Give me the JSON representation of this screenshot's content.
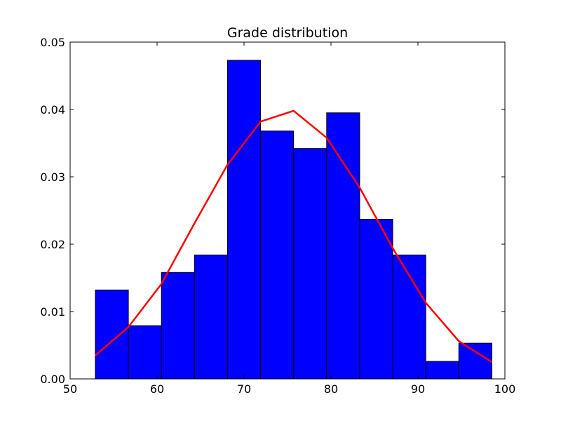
{
  "chart_data": {
    "type": "bar",
    "title": "Grade distribution",
    "xlabel": "",
    "ylabel": "",
    "xlim": [
      50,
      100
    ],
    "ylim": [
      0,
      0.05
    ],
    "x_ticks": [
      50,
      60,
      70,
      80,
      90,
      100
    ],
    "x_tick_labels": [
      "50",
      "60",
      "70",
      "80",
      "90",
      "100"
    ],
    "y_ticks": [
      0,
      0.01,
      0.02,
      0.03,
      0.04,
      0.05
    ],
    "y_tick_labels": [
      "0.00",
      "0.01",
      "0.02",
      "0.03",
      "0.04",
      "0.05"
    ],
    "grid": false,
    "series": [
      {
        "kind": "histogram",
        "bin_edges": [
          52.9,
          56.7,
          60.5,
          64.3,
          68.1,
          71.9,
          75.7,
          79.5,
          83.3,
          87.1,
          90.9,
          94.7,
          98.5
        ],
        "values": [
          0.0132,
          0.0079,
          0.0158,
          0.0184,
          0.0473,
          0.0368,
          0.0342,
          0.0395,
          0.0237,
          0.0184,
          0.0026,
          0.0053
        ],
        "color": "#0000ff",
        "edge_color": "#000000"
      },
      {
        "kind": "line",
        "x": [
          52.9,
          56.7,
          60.5,
          64.3,
          68.1,
          71.9,
          75.7,
          79.5,
          83.3,
          87.1,
          90.9,
          94.7,
          98.5
        ],
        "y": [
          0.0035,
          0.0077,
          0.0141,
          0.0231,
          0.0318,
          0.0382,
          0.0398,
          0.0358,
          0.0284,
          0.0194,
          0.0113,
          0.0056,
          0.0025
        ],
        "color": "#ff0000"
      }
    ]
  }
}
